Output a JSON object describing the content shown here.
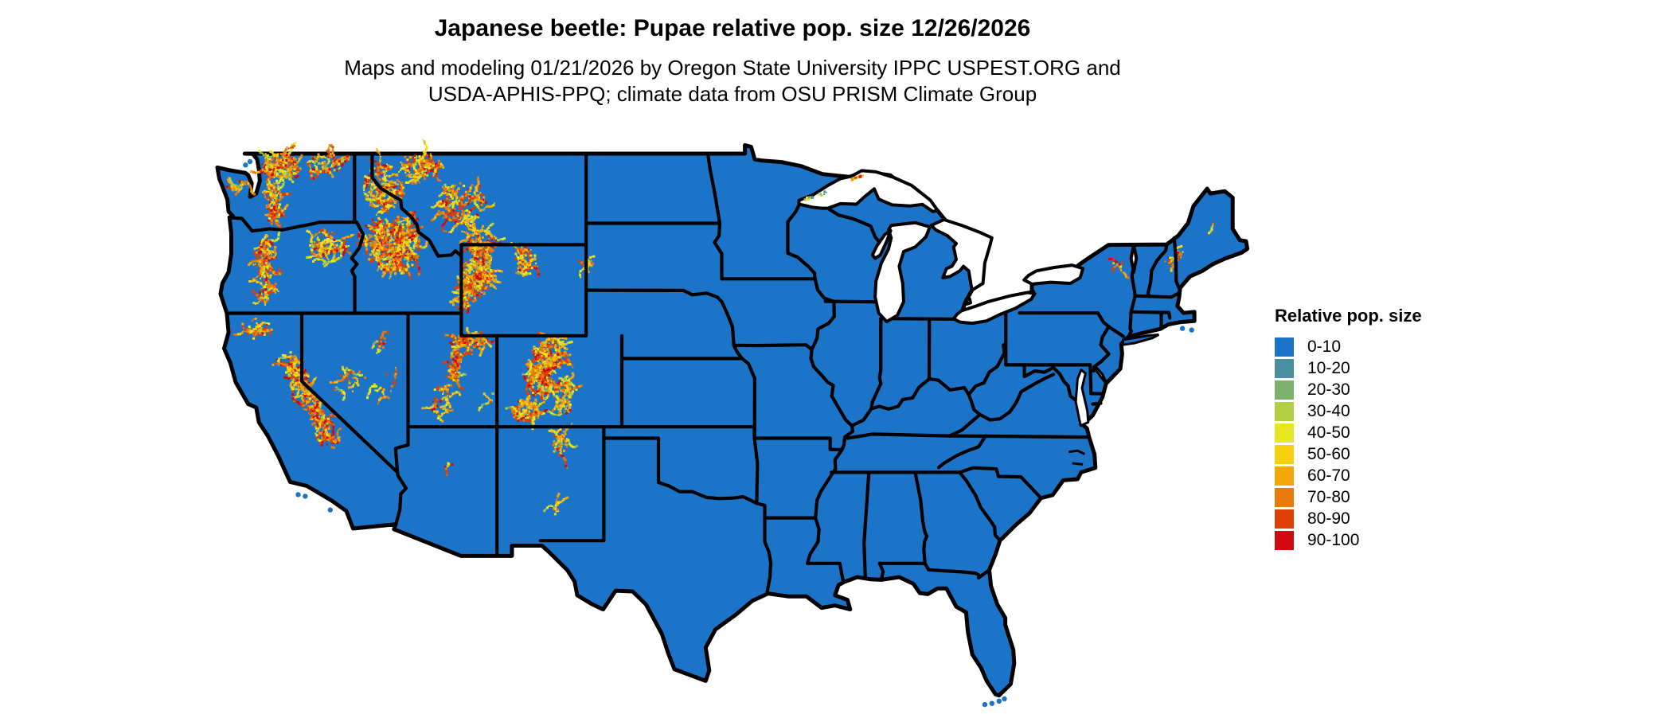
{
  "title": "Japanese beetle: Pupae relative pop. size 12/26/2026",
  "subtitle_line1": "Maps and modeling 01/21/2026 by Oregon State University IPPC USPEST.ORG and",
  "subtitle_line2": "USDA-APHIS-PPQ; climate data from OSU PRISM Climate Group",
  "legend": {
    "title": "Relative pop. size",
    "items": [
      {
        "label": "0-10",
        "color": "#1c74c8"
      },
      {
        "label": "10-20",
        "color": "#4b90a1"
      },
      {
        "label": "20-30",
        "color": "#7db26d"
      },
      {
        "label": "30-40",
        "color": "#b2d043"
      },
      {
        "label": "40-50",
        "color": "#e8e822"
      },
      {
        "label": "50-60",
        "color": "#f6d20e"
      },
      {
        "label": "60-70",
        "color": "#f2a70b"
      },
      {
        "label": "70-80",
        "color": "#ea7a09"
      },
      {
        "label": "80-90",
        "color": "#dd3f06"
      },
      {
        "label": "90-100",
        "color": "#ce0a10"
      }
    ]
  },
  "map": {
    "land_color": "#1c74c8",
    "border_color": "#000000",
    "water_color": "#ffffff",
    "background_color": "#ffffff"
  }
}
